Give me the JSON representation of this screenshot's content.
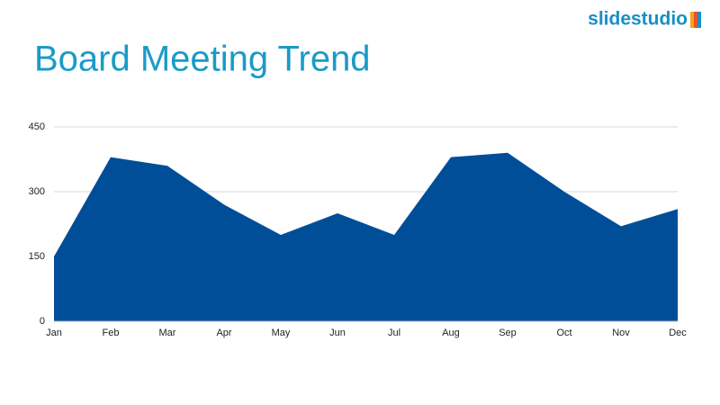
{
  "logo": "slidestudio",
  "chart_data": {
    "type": "area",
    "title": "Board Meeting Trend",
    "categories": [
      "Jan",
      "Feb",
      "Mar",
      "Apr",
      "May",
      "Jun",
      "Jul",
      "Aug",
      "Sep",
      "Oct",
      "Nov",
      "Dec"
    ],
    "values": [
      150,
      380,
      360,
      270,
      200,
      250,
      200,
      380,
      390,
      300,
      220,
      260
    ],
    "color": "#004e98",
    "ylim": [
      0,
      450
    ],
    "yticks": [
      0,
      150,
      300,
      450
    ],
    "grid": true
  }
}
